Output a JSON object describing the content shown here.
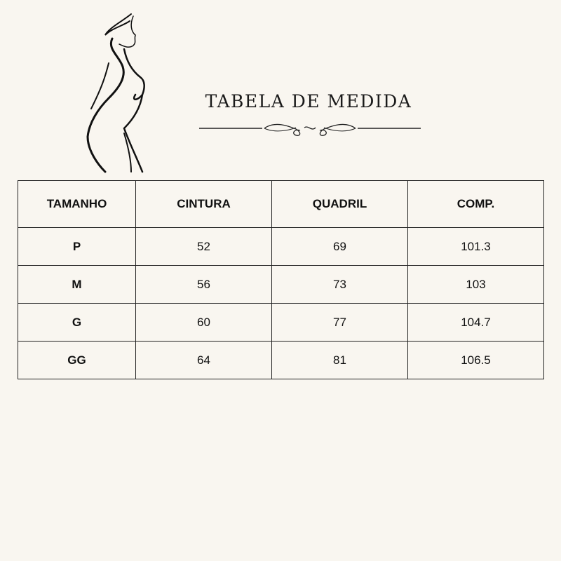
{
  "title": "TABELA DE MEDIDA",
  "table": {
    "headers": [
      "TAMANHO",
      "CINTURA",
      "QUADRIL",
      "COMP."
    ],
    "rows": [
      [
        "P",
        "52",
        "69",
        "101.3"
      ],
      [
        "M",
        "56",
        "73",
        "103"
      ],
      [
        "G",
        "60",
        "77",
        "104.7"
      ],
      [
        "GG",
        "64",
        "81",
        "106.5"
      ]
    ]
  },
  "colors": {
    "background": "#f9f6f0",
    "ink": "#111111"
  },
  "icons": {
    "figure": "woman-silhouette-line-art",
    "divider": "ornamental-flourish"
  }
}
